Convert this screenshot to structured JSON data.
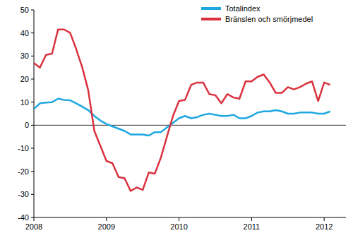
{
  "chart_data": {
    "type": "line",
    "x": [
      2008,
      2008.083,
      2008.167,
      2008.25,
      2008.333,
      2008.417,
      2008.5,
      2008.583,
      2008.667,
      2008.75,
      2008.833,
      2008.917,
      2009,
      2009.083,
      2009.167,
      2009.25,
      2009.333,
      2009.417,
      2009.5,
      2009.583,
      2009.667,
      2009.75,
      2009.833,
      2009.917,
      2010,
      2010.083,
      2010.167,
      2010.25,
      2010.333,
      2010.417,
      2010.5,
      2010.583,
      2010.667,
      2010.75,
      2010.833,
      2010.917,
      2011,
      2011.083,
      2011.167,
      2011.25,
      2011.333,
      2011.417,
      2011.5,
      2011.583,
      2011.667,
      2011.75,
      2011.833,
      2011.917,
      2012,
      2012.083
    ],
    "series": [
      {
        "name": "Totalindex",
        "color": "#1ea7e1",
        "values": [
          7,
          9.5,
          9.8,
          10,
          11.5,
          11,
          10.8,
          9.5,
          8,
          6.5,
          4,
          2,
          0.5,
          -0.5,
          -1.5,
          -2.5,
          -4,
          -4,
          -4,
          -4.5,
          -3,
          -3,
          -1,
          1,
          3,
          4,
          3,
          3.5,
          4.5,
          5,
          4.5,
          4,
          4,
          4.5,
          3,
          3,
          4,
          5.5,
          6,
          6,
          6.5,
          6,
          5,
          5,
          5.5,
          5.5,
          5.5,
          5,
          5,
          6
        ]
      },
      {
        "name": "Bränslen och smörjmedel",
        "color": "#d9323e",
        "values": [
          27,
          25,
          30.5,
          31,
          41.5,
          41.5,
          40,
          33,
          25,
          15,
          -2.5,
          -9,
          -15.5,
          -16.5,
          -22.5,
          -23,
          -28.5,
          -27,
          -28,
          -20.5,
          -21,
          -14,
          -5,
          4,
          10.5,
          11,
          17.5,
          18.5,
          18.5,
          13.5,
          13,
          9.5,
          13.5,
          12,
          11.5,
          19,
          19,
          21,
          22,
          18.5,
          14,
          14,
          16.5,
          15.5,
          16.5,
          18,
          19,
          10.5,
          18.5,
          17.5
        ]
      }
    ],
    "xlim": [
      2008,
      2012.3
    ],
    "xticks": [
      2008,
      2009,
      2010,
      2011,
      2012
    ],
    "ylim": [
      -40,
      50
    ],
    "yticks": [
      -40,
      -30,
      -20,
      -10,
      0,
      10,
      20,
      30,
      40,
      50
    ],
    "grid": false,
    "legend": "upper right"
  }
}
